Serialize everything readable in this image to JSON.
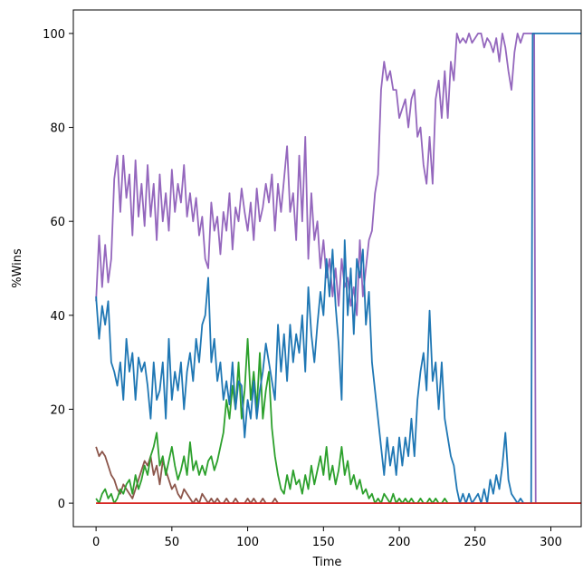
{
  "chart_data": {
    "type": "line",
    "title": "",
    "xlabel": "Time",
    "ylabel": "%Wins",
    "xlim": [
      -15,
      320
    ],
    "ylim": [
      -5,
      105
    ],
    "xticks": [
      0,
      50,
      100,
      150,
      200,
      250,
      300
    ],
    "yticks": [
      0,
      20,
      40,
      60,
      80,
      100
    ],
    "grid": false,
    "legend": "none",
    "series": [
      {
        "color": "#ff7f0e",
        "x": [
          0,
          320
        ],
        "y": [
          0,
          0
        ]
      },
      {
        "color": "#9467bd",
        "x": [
          0,
          2,
          4,
          6,
          8,
          10,
          12,
          14,
          16,
          18,
          20,
          22,
          24,
          26,
          28,
          30,
          32,
          34,
          36,
          38,
          40,
          42,
          44,
          46,
          48,
          50,
          52,
          54,
          56,
          58,
          60,
          62,
          64,
          66,
          68,
          70,
          72,
          74,
          76,
          78,
          80,
          82,
          84,
          86,
          88,
          90,
          92,
          94,
          96,
          98,
          100,
          102,
          104,
          106,
          108,
          110,
          112,
          114,
          116,
          118,
          120,
          122,
          124,
          126,
          128,
          130,
          132,
          134,
          136,
          138,
          140,
          142,
          144,
          146,
          148,
          150,
          152,
          154,
          156,
          158,
          160,
          162,
          164,
          166,
          168,
          170,
          172,
          174,
          176,
          178,
          180,
          182,
          184,
          186,
          188,
          190,
          192,
          194,
          196,
          198,
          200,
          202,
          204,
          206,
          208,
          210,
          212,
          214,
          216,
          218,
          220,
          222,
          224,
          226,
          228,
          230,
          232,
          234,
          236,
          238,
          240,
          242,
          244,
          246,
          248,
          250,
          252,
          254,
          256,
          258,
          260,
          262,
          264,
          266,
          268,
          270,
          272,
          274,
          276,
          278,
          280,
          282,
          284,
          286,
          287,
          288
        ],
        "y": [
          43,
          57,
          46,
          55,
          47,
          52,
          69,
          74,
          62,
          74,
          65,
          70,
          57,
          73,
          61,
          68,
          59,
          72,
          61,
          68,
          56,
          70,
          60,
          66,
          58,
          71,
          62,
          68,
          64,
          72,
          61,
          66,
          60,
          65,
          57,
          61,
          52,
          50,
          64,
          58,
          61,
          53,
          62,
          58,
          66,
          54,
          63,
          60,
          67,
          62,
          58,
          64,
          56,
          67,
          60,
          63,
          68,
          64,
          70,
          58,
          68,
          62,
          69,
          76,
          62,
          66,
          56,
          74,
          60,
          78,
          52,
          66,
          56,
          60,
          50,
          56,
          48,
          52,
          44,
          50,
          42,
          52,
          46,
          48,
          42,
          46,
          40,
          56,
          44,
          50,
          56,
          58,
          66,
          70,
          88,
          94,
          90,
          92,
          88,
          88,
          82,
          84,
          86,
          80,
          86,
          88,
          78,
          80,
          72,
          68,
          78,
          68,
          86,
          90,
          82,
          92,
          82,
          94,
          90,
          100,
          98,
          99,
          98,
          100,
          98,
          99,
          100,
          100,
          97,
          99,
          98,
          96,
          99,
          94,
          100,
          97,
          92,
          88,
          96,
          100,
          98,
          100,
          100,
          100,
          100,
          100
        ],
        "x2": [
          288,
          289,
          290,
          320
        ],
        "y2": [
          100,
          100,
          0,
          0
        ]
      },
      {
        "color": "#8c564b",
        "x": [
          0,
          2,
          4,
          6,
          8,
          10,
          12,
          14,
          16,
          18,
          20,
          22,
          24,
          26,
          28,
          30,
          32,
          34,
          36,
          38,
          40,
          42,
          44,
          46,
          48,
          50,
          52,
          54,
          56,
          58,
          60,
          62,
          64,
          66,
          68,
          70,
          72,
          74,
          76,
          78,
          80,
          82,
          84,
          86,
          88,
          90,
          92,
          94,
          96,
          98,
          100,
          102,
          104,
          106,
          108,
          110,
          112,
          114,
          116,
          118,
          120,
          122,
          124,
          320
        ],
        "y": [
          12,
          10,
          11,
          10,
          8,
          6,
          5,
          3,
          2,
          4,
          3,
          2,
          1,
          3,
          5,
          7,
          9,
          8,
          10,
          6,
          8,
          4,
          9,
          7,
          5,
          3,
          4,
          2,
          1,
          3,
          2,
          1,
          0,
          1,
          0,
          2,
          1,
          0,
          1,
          0,
          1,
          0,
          0,
          1,
          0,
          0,
          1,
          0,
          0,
          0,
          1,
          0,
          1,
          0,
          0,
          1,
          0,
          0,
          0,
          1,
          0,
          0,
          0,
          0
        ]
      },
      {
        "color": "#2ca02c",
        "x": [
          0,
          2,
          4,
          6,
          8,
          10,
          12,
          14,
          16,
          18,
          20,
          22,
          24,
          26,
          28,
          30,
          32,
          34,
          36,
          38,
          40,
          42,
          44,
          46,
          48,
          50,
          52,
          54,
          56,
          58,
          60,
          62,
          64,
          66,
          68,
          70,
          72,
          74,
          76,
          78,
          80,
          82,
          84,
          86,
          88,
          90,
          92,
          94,
          96,
          98,
          100,
          102,
          104,
          106,
          108,
          110,
          112,
          114,
          116,
          118,
          120,
          122,
          124,
          126,
          128,
          130,
          132,
          134,
          136,
          138,
          140,
          142,
          144,
          146,
          148,
          150,
          152,
          154,
          156,
          158,
          160,
          162,
          164,
          166,
          168,
          170,
          172,
          174,
          176,
          178,
          180,
          182,
          184,
          186,
          188,
          190,
          192,
          194,
          196,
          198,
          200,
          202,
          204,
          206,
          208,
          210,
          212,
          214,
          216,
          218,
          220,
          222,
          224,
          226,
          228,
          230,
          232,
          234,
          236,
          320
        ],
        "y": [
          1,
          0,
          2,
          3,
          1,
          2,
          0,
          1,
          3,
          2,
          4,
          5,
          2,
          6,
          3,
          5,
          8,
          6,
          10,
          12,
          15,
          8,
          10,
          6,
          9,
          12,
          8,
          5,
          7,
          10,
          6,
          13,
          7,
          9,
          6,
          8,
          6,
          9,
          10,
          7,
          9,
          12,
          15,
          22,
          18,
          25,
          20,
          30,
          18,
          24,
          35,
          22,
          28,
          20,
          32,
          18,
          24,
          28,
          16,
          10,
          6,
          3,
          2,
          6,
          3,
          7,
          4,
          5,
          2,
          6,
          3,
          8,
          4,
          7,
          10,
          6,
          12,
          5,
          8,
          4,
          7,
          12,
          6,
          9,
          4,
          6,
          3,
          5,
          2,
          3,
          1,
          2,
          0,
          1,
          0,
          2,
          1,
          0,
          2,
          0,
          1,
          0,
          1,
          0,
          1,
          0,
          0,
          1,
          0,
          0,
          1,
          0,
          1,
          0,
          0,
          1,
          0,
          0,
          0,
          0
        ]
      },
      {
        "color": "#1f77b4",
        "x": [
          0,
          2,
          4,
          6,
          8,
          10,
          12,
          14,
          16,
          18,
          20,
          22,
          24,
          26,
          28,
          30,
          32,
          34,
          36,
          38,
          40,
          42,
          44,
          46,
          48,
          50,
          52,
          54,
          56,
          58,
          60,
          62,
          64,
          66,
          68,
          70,
          72,
          74,
          76,
          78,
          80,
          82,
          84,
          86,
          88,
          90,
          92,
          94,
          96,
          98,
          100,
          102,
          104,
          106,
          108,
          110,
          112,
          114,
          116,
          118,
          120,
          122,
          124,
          126,
          128,
          130,
          132,
          134,
          136,
          138,
          140,
          142,
          144,
          146,
          148,
          150,
          152,
          154,
          156,
          158,
          160,
          162,
          164,
          166,
          168,
          170,
          172,
          174,
          176,
          178,
          180,
          182,
          184,
          186,
          188,
          190,
          192,
          194,
          196,
          198,
          200,
          202,
          204,
          206,
          208,
          210,
          212,
          214,
          216,
          218,
          220,
          222,
          224,
          226,
          228,
          230,
          232,
          234,
          236,
          238,
          240,
          242,
          244,
          246,
          248,
          250,
          252,
          254,
          256,
          258,
          260,
          262,
          264,
          266,
          268,
          270,
          272,
          274,
          276,
          278,
          280,
          282,
          284,
          286,
          287,
          288,
          289,
          290,
          320
        ],
        "y": [
          44,
          35,
          42,
          38,
          43,
          30,
          28,
          25,
          30,
          22,
          35,
          28,
          32,
          22,
          31,
          28,
          30,
          25,
          18,
          30,
          22,
          24,
          30,
          18,
          35,
          22,
          28,
          24,
          30,
          20,
          28,
          32,
          26,
          35,
          30,
          38,
          40,
          48,
          30,
          35,
          26,
          30,
          22,
          26,
          21,
          30,
          20,
          26,
          25,
          14,
          22,
          18,
          26,
          18,
          24,
          28,
          34,
          30,
          26,
          22,
          38,
          28,
          36,
          26,
          38,
          30,
          36,
          32,
          40,
          28,
          46,
          36,
          30,
          38,
          45,
          40,
          52,
          44,
          54,
          42,
          34,
          22,
          56,
          40,
          50,
          36,
          52,
          48,
          54,
          38,
          45,
          30,
          24,
          18,
          12,
          6,
          14,
          8,
          12,
          6,
          14,
          8,
          14,
          10,
          18,
          10,
          22,
          28,
          32,
          24,
          41,
          26,
          30,
          20,
          30,
          18,
          14,
          10,
          8,
          3,
          0,
          2,
          0,
          2,
          0,
          1,
          2,
          0,
          3,
          0,
          5,
          2,
          6,
          3,
          8,
          15,
          5,
          2,
          1,
          0,
          1,
          0,
          0,
          0,
          0,
          100,
          100,
          100,
          100
        ]
      },
      {
        "color": "#d62728",
        "x": [
          0,
          320
        ],
        "y": [
          0,
          0
        ]
      }
    ]
  }
}
